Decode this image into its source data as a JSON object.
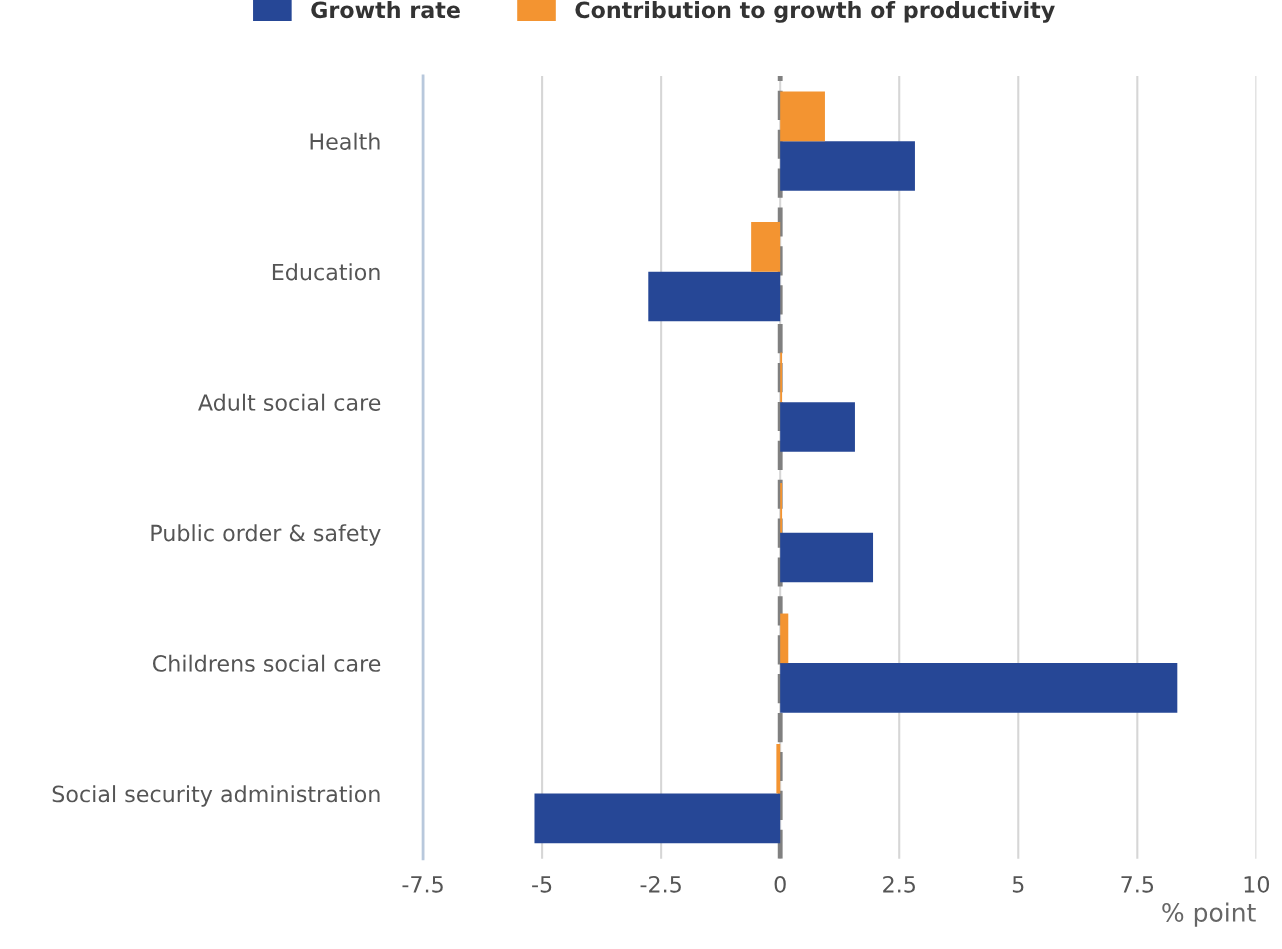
{
  "chart_data": {
    "type": "bar",
    "orientation": "horizontal",
    "xlabel": "% point",
    "categories": [
      "Health",
      "Education",
      "Adult social care",
      "Public order & safety",
      "Childrens social care",
      "Social security administration"
    ],
    "series": [
      {
        "name": "Growth rate",
        "color": "#264796",
        "values": [
          2.83,
          -2.77,
          1.57,
          1.95,
          8.34,
          -5.16
        ]
      },
      {
        "name": "Contribution to growth of productivity",
        "color": "#f39431",
        "values": [
          0.94,
          -0.61,
          0.04,
          0.04,
          0.17,
          -0.08
        ]
      }
    ],
    "xlim": [
      -7.5,
      10
    ],
    "xticks": [
      -7.5,
      -5,
      -2.5,
      0,
      2.5,
      5,
      7.5,
      10
    ],
    "ref_lines": [
      {
        "axis": "x",
        "value": 0,
        "color": "#808080",
        "line_style": "dashed"
      }
    ],
    "grid": "x",
    "legend": "top"
  }
}
